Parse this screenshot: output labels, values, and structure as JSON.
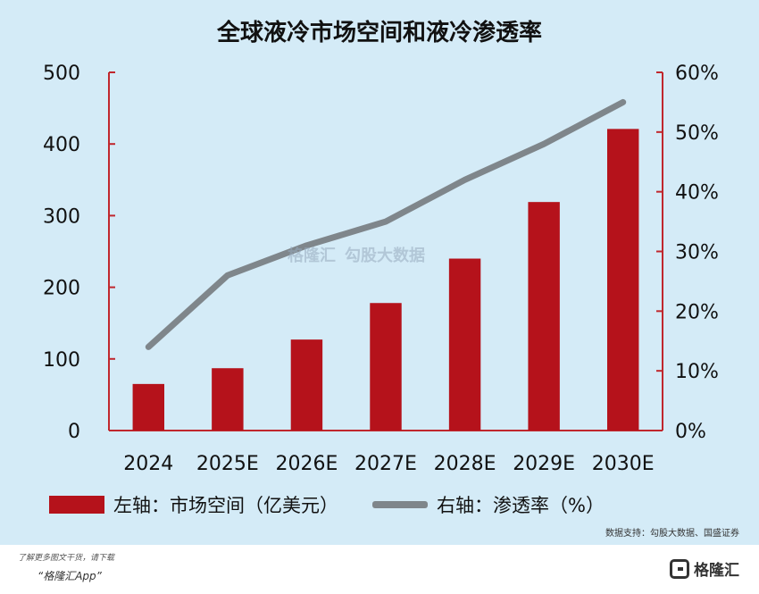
{
  "title": "全球液冷市场空间和液冷渗透率",
  "legend": {
    "bar_label": "左轴：市场空间（亿美元）",
    "line_label": "右轴：渗透率（%）"
  },
  "source": "数据支持：勾股大数据、国盛证券",
  "footer": {
    "note": "了解更多图文干货，请下载",
    "app": "“格隆汇App”",
    "logo_text": "格隆汇"
  },
  "watermark": {
    "brand": "格隆汇",
    "data": "勾股大数据"
  },
  "colors": {
    "bar": "#b5121b",
    "line": "#7f868b",
    "axis": "#c0272d",
    "background": "#d4ebf7"
  },
  "chart_data": {
    "type": "bar",
    "categories": [
      "2024",
      "2025E",
      "2026E",
      "2027E",
      "2028E",
      "2029E",
      "2030E"
    ],
    "series": [
      {
        "type": "bar",
        "axis": "left",
        "values": [
          65,
          87,
          127,
          178,
          240,
          319,
          421
        ]
      },
      {
        "type": "line",
        "axis": "right",
        "values": [
          14,
          26,
          31,
          35,
          42,
          48,
          55
        ]
      }
    ],
    "y_left": {
      "ticks": [
        "0",
        "100",
        "200",
        "300",
        "400",
        "500"
      ],
      "range": [
        0,
        500
      ]
    },
    "y_right": {
      "ticks": [
        "0%",
        "10%",
        "20%",
        "30%",
        "40%",
        "50%",
        "60%"
      ],
      "range": [
        0,
        60
      ]
    },
    "grid": false,
    "legend_position": "bottom"
  }
}
